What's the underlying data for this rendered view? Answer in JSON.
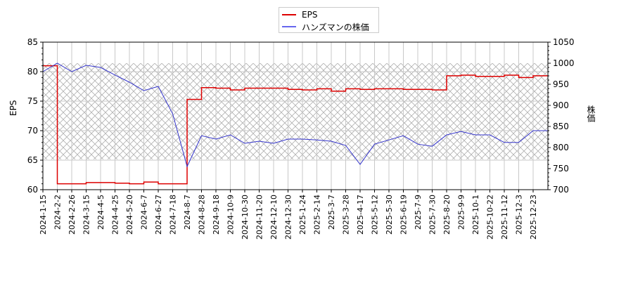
{
  "legend": {
    "items": [
      {
        "label": "EPS",
        "color": "#dd0000"
      },
      {
        "label": "ハンズマンの株価",
        "color": "#3333cc"
      }
    ]
  },
  "axes": {
    "left_label": "EPS",
    "right_label": "株価"
  },
  "chart_data": {
    "type": "line",
    "title": "",
    "xlabel": "",
    "ylabel": "EPS",
    "y2label": "株価",
    "ylim": [
      60,
      85
    ],
    "y2lim": [
      700,
      1050
    ],
    "yticks": [
      60,
      65,
      70,
      75,
      80,
      85
    ],
    "y2ticks": [
      700,
      750,
      800,
      850,
      900,
      950,
      1000,
      1050
    ],
    "grid": true,
    "legend_position": "top-center",
    "shaded_band": {
      "y2_from": 772,
      "y2_to": 1000,
      "pattern": "crosshatch"
    },
    "categories": [
      "2024-1-15",
      "2024-2-2",
      "2024-2-26",
      "2024-3-15",
      "2024-4-5",
      "2024-4-25",
      "2024-5-20",
      "2024-6-7",
      "2024-6-27",
      "2024-7-18",
      "2024-8-7",
      "2024-8-28",
      "2024-9-18",
      "2024-10-9",
      "2024-10-30",
      "2024-11-20",
      "2024-12-10",
      "2024-12-30",
      "2025-1-24",
      "2025-2-14",
      "2025-3-7",
      "2025-3-28",
      "2025-4-17",
      "2025-5-12",
      "2025-5-30",
      "2025-6-19",
      "2025-7-9",
      "2025-7-30",
      "2025-8-20",
      "2025-9-9",
      "2025-10-1",
      "2025-10-22",
      "2025-11-12",
      "2025-12-3",
      "2025-12-23"
    ],
    "series": [
      {
        "name": "EPS",
        "axis": "left",
        "color": "#dd0000",
        "values": [
          81.0,
          61.0,
          61.0,
          61.2,
          61.2,
          61.1,
          61.0,
          61.3,
          61.0,
          61.0,
          75.3,
          77.3,
          77.2,
          76.9,
          77.2,
          77.2,
          77.2,
          77.0,
          76.9,
          77.1,
          76.7,
          77.1,
          77.0,
          77.1,
          77.1,
          77.0,
          77.0,
          76.9,
          79.3,
          79.4,
          79.2,
          79.2,
          79.4,
          79.0,
          79.3
        ]
      },
      {
        "name": "ハンズマンの株価",
        "axis": "right",
        "color": "#3333cc",
        "values": [
          980,
          1000,
          980,
          995,
          990,
          972,
          955,
          935,
          945,
          880,
          755,
          828,
          820,
          830,
          810,
          815,
          810,
          820,
          820,
          818,
          815,
          805,
          760,
          808,
          818,
          828,
          808,
          803,
          830,
          838,
          830,
          830,
          812,
          812,
          840
        ]
      }
    ]
  }
}
